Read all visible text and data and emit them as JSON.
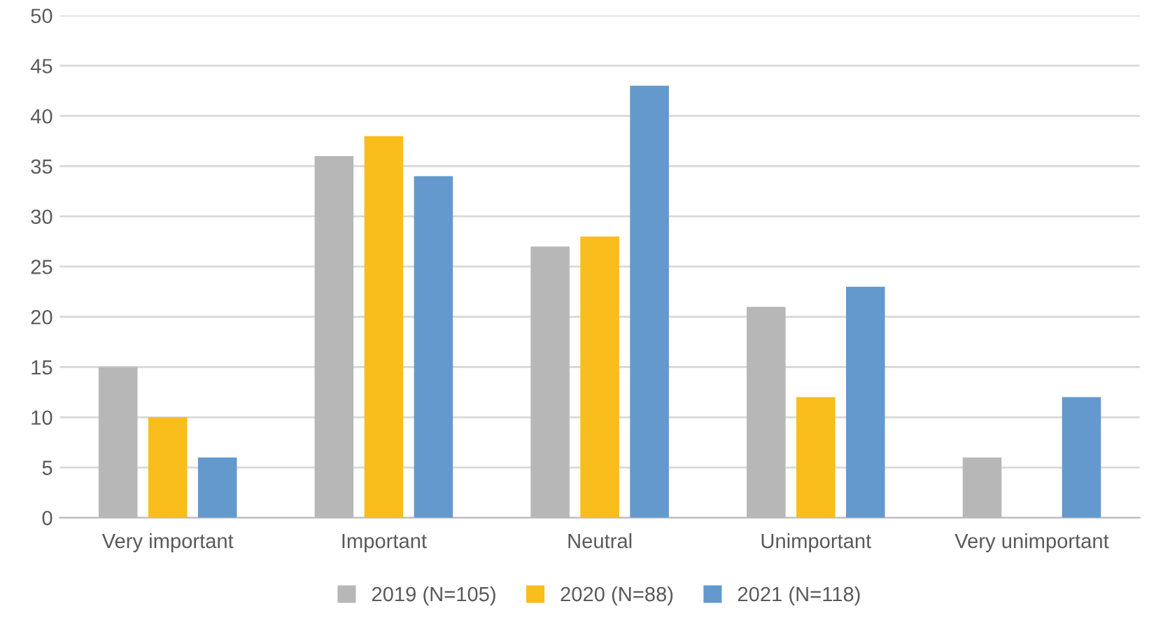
{
  "chart_data": {
    "type": "bar",
    "categories": [
      "Very important",
      "Important",
      "Neutral",
      "Unimportant",
      "Very unimportant"
    ],
    "series": [
      {
        "name": "2019 (N=105)",
        "color": "#b7b7b7",
        "values": [
          15,
          36,
          27,
          21,
          6
        ]
      },
      {
        "name": "2020 (N=88)",
        "color": "#f9bd1c",
        "values": [
          10,
          38,
          28,
          12,
          0
        ]
      },
      {
        "name": "2021 (N=118)",
        "color": "#6399cd",
        "values": [
          6,
          34,
          43,
          23,
          12
        ]
      }
    ],
    "ylim": [
      0,
      50
    ],
    "yticks": [
      0,
      5,
      10,
      15,
      20,
      25,
      30,
      35,
      40,
      45,
      50
    ],
    "grid": "y",
    "legend": "bottom"
  }
}
